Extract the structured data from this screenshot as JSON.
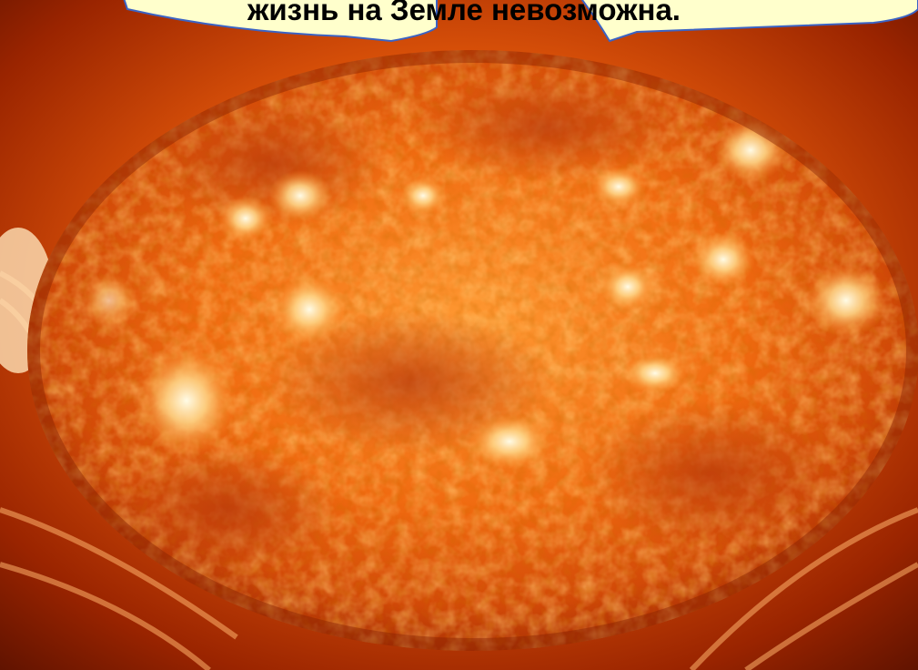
{
  "caption": {
    "text": "жизнь на Земле невозможна."
  },
  "scene": {
    "subject": "sun-surface",
    "colors": {
      "corona": "#b43a04",
      "disk_core": "#ffb04a",
      "disk_mid": "#f06a10",
      "disk_edge": "#c23806",
      "bright_region": "#fff3c8",
      "callout_fill": "#ffffcc",
      "callout_stroke": "#3b63c4"
    }
  }
}
